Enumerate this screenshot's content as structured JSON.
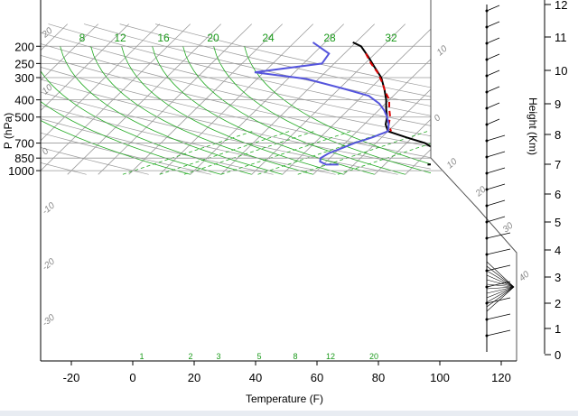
{
  "chart_data": {
    "type": "line",
    "title": "",
    "xlabel": "Temperature (F)",
    "ylabel": "P (hPa)",
    "y2label": "Height (Km)",
    "x_ticks": [
      -20,
      0,
      20,
      40,
      60,
      80,
      100,
      120
    ],
    "y_ticks": [
      200,
      250,
      300,
      400,
      500,
      700,
      850,
      1000
    ],
    "height_ticks": [
      0,
      1,
      2,
      3,
      4,
      5,
      6,
      7,
      8,
      9,
      10,
      11,
      12
    ],
    "xlim": [
      -28,
      125
    ],
    "ylim": [
      1050,
      190
    ],
    "grid": true,
    "mixing_ratio_labels": [
      "8",
      "12",
      "16",
      "20",
      "24",
      "28",
      "32"
    ],
    "mixing_ratio_bottom_labels": [
      "1",
      "2",
      "3",
      "5",
      "8",
      "12",
      "20"
    ],
    "adiabat_labels_left": [
      "20",
      "10",
      "0",
      "-10",
      "-20",
      "-30"
    ],
    "adiabat_labels_right": [
      "10",
      "0",
      "10",
      "20",
      "30",
      "40"
    ],
    "series": [
      {
        "color": "#000000",
        "style": "solid",
        "points": [
          [
            29,
            190
          ],
          [
            33,
            200
          ],
          [
            39,
            230
          ],
          [
            44,
            260
          ],
          [
            50,
            300
          ],
          [
            55,
            350
          ],
          [
            59,
            400
          ],
          [
            62,
            450
          ],
          [
            65,
            500
          ],
          [
            67,
            550
          ],
          [
            70,
            600
          ],
          [
            78,
            650
          ],
          [
            86,
            700
          ],
          [
            95,
            800
          ],
          [
            100,
            850
          ],
          [
            101,
            880
          ],
          [
            100,
            900
          ],
          [
            96,
            920
          ],
          [
            94,
            925
          ]
        ]
      },
      {
        "color": "#dd0000",
        "style": "dashed",
        "points": [
          [
            37,
            220
          ],
          [
            42,
            250
          ],
          [
            47,
            280
          ],
          [
            52,
            320
          ],
          [
            56,
            360
          ],
          [
            60,
            400
          ],
          [
            63,
            450
          ],
          [
            66,
            500
          ],
          [
            68,
            550
          ],
          [
            71,
            600
          ]
        ]
      },
      {
        "color": "#5555dd",
        "style": "solid",
        "points": [
          [
            16,
            190
          ],
          [
            25,
            220
          ],
          [
            26,
            250
          ],
          [
            7,
            280
          ],
          [
            26,
            305
          ],
          [
            41,
            345
          ],
          [
            52,
            380
          ],
          [
            58,
            420
          ],
          [
            62,
            460
          ],
          [
            65,
            500
          ],
          [
            68,
            550
          ],
          [
            70,
            600
          ],
          [
            67,
            650
          ],
          [
            63,
            700
          ],
          [
            60,
            760
          ],
          [
            58,
            800
          ],
          [
            57,
            850
          ],
          [
            58,
            890
          ],
          [
            61,
            925
          ],
          [
            65,
            925
          ]
        ]
      }
    ],
    "wind_barb_column": "right"
  }
}
